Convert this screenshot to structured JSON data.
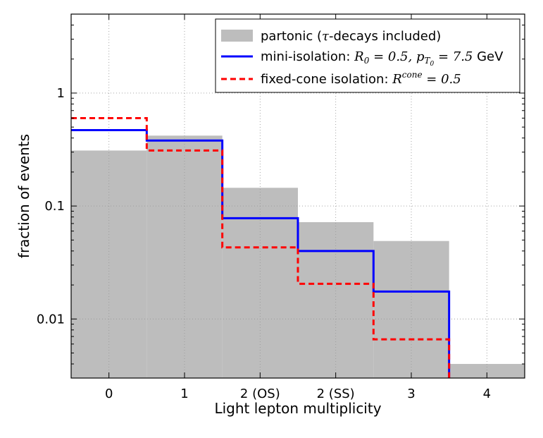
{
  "chart_data": {
    "type": "step",
    "title": "",
    "xlabel": "Light lepton multiplicity",
    "ylabel": "fraction of events",
    "yscale": "log",
    "grid": true,
    "legend_position": "top-right",
    "categories": [
      "0",
      "1",
      "2 (OS)",
      "2 (SS)",
      "3",
      "4"
    ],
    "xlim": [
      -0.5,
      5.5
    ],
    "ylim": [
      0.003,
      5
    ],
    "yticks": [
      0.01,
      0.1,
      1
    ],
    "yticklabels": [
      "0.01",
      "0.1",
      "1"
    ],
    "series": [
      {
        "name": "partonic (τ-decays included)",
        "kind": "filled-histogram",
        "color": "#bdbdbd",
        "values": [
          0.31,
          0.42,
          0.145,
          0.072,
          0.049,
          0.004
        ]
      },
      {
        "name": "mini-isolation",
        "kind": "step-line",
        "color": "#0000ff",
        "linestyle": "solid",
        "values": [
          0.47,
          0.38,
          0.078,
          0.04,
          0.0175,
          null
        ]
      },
      {
        "name": "fixed-cone isolation",
        "kind": "step-line",
        "color": "#ff0000",
        "linestyle": "dashed",
        "values": [
          0.6,
          0.31,
          0.043,
          0.0205,
          0.0066,
          null
        ]
      }
    ],
    "legend": [
      {
        "series_index": 0,
        "text_before": "partonic (",
        "math": "τ",
        "text_after": "-decays included)"
      },
      {
        "series_index": 1,
        "text_before": "mini-isolation: ",
        "math1_base": "R",
        "math1_sub": "0",
        "math1_rest": " = 0.5, ",
        "math2_base": "p",
        "math2_sub": "T",
        "math2_subsub": "0",
        "math2_rest": " = 7.5",
        "text_after": " GeV"
      },
      {
        "series_index": 2,
        "text_before": "fixed-cone isolation: ",
        "math_base": "R",
        "math_sup": "cone",
        "math_rest": " = 0.5"
      }
    ]
  }
}
